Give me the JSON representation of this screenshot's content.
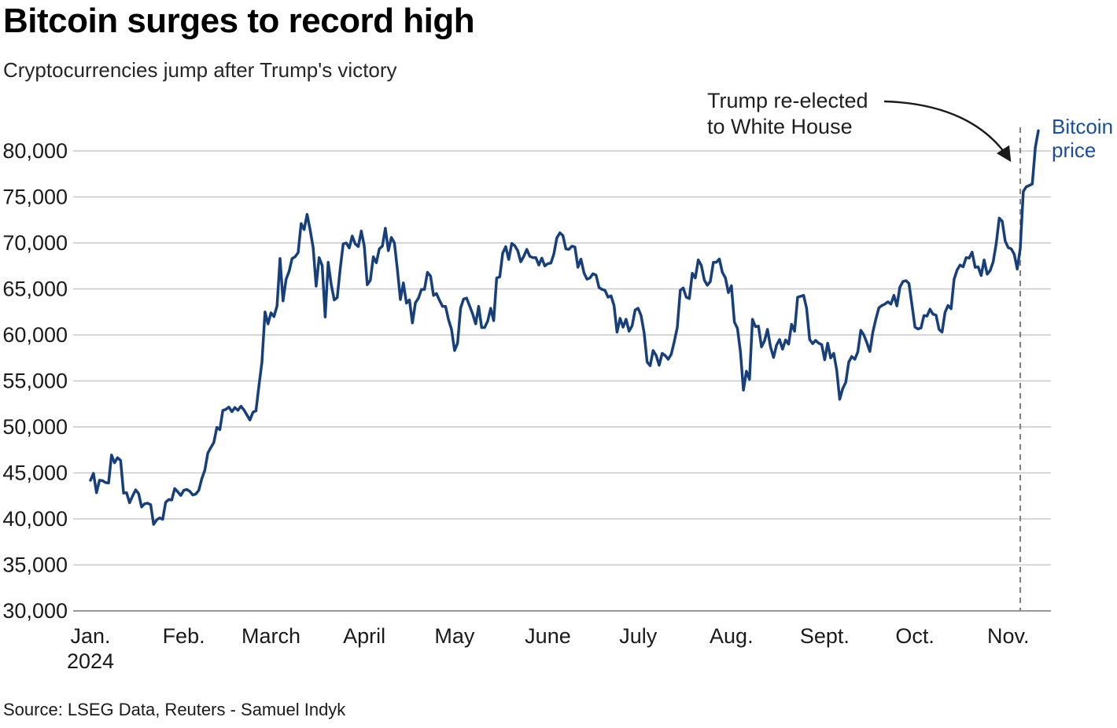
{
  "header": {
    "title": "Bitcoin surges to record high",
    "subtitle": "Cryptocurrencies jump after Trump's victory"
  },
  "footer": {
    "source": "Source: LSEG Data, Reuters - Samuel Indyk"
  },
  "annotation": {
    "line1": "Trump re-elected",
    "line2": "to White House"
  },
  "series_label": {
    "line1": "Bitcoin",
    "line2": "price"
  },
  "colors": {
    "line": "#173f7c",
    "series_label_text": "#1a4d9c",
    "grid": "#c9c9c9",
    "axis": "#999999",
    "event_line": "#7d7d7d",
    "arrow": "#1a1a1a",
    "tick_text": "#1a1a1a"
  },
  "chart_data": {
    "type": "line",
    "title": "Bitcoin surges to record high",
    "subtitle": "Cryptocurrencies jump after Trump's victory",
    "source": "Source: LSEG Data, Reuters - Samuel Indyk",
    "x_start_date": "Jan. 1, 2024",
    "x_end_date": "Nov. 11, 2024",
    "x_frequency": "daily",
    "ylim": [
      30000,
      80000
    ],
    "y_tick_step": 5000,
    "grid": "horizontal",
    "legend_position": "end-of-line-label",
    "y_ticks": [
      {
        "value": 80000,
        "label": "80,000"
      },
      {
        "value": 75000,
        "label": "75,000"
      },
      {
        "value": 70000,
        "label": "70,000"
      },
      {
        "value": 65000,
        "label": "65,000"
      },
      {
        "value": 60000,
        "label": "60,000"
      },
      {
        "value": 55000,
        "label": "55,000"
      },
      {
        "value": 50000,
        "label": "50,000"
      },
      {
        "value": 45000,
        "label": "45,000"
      },
      {
        "value": 40000,
        "label": "40,000"
      },
      {
        "value": 35000,
        "label": "35,000"
      },
      {
        "value": 30000,
        "label": "30,000"
      }
    ],
    "x_ticks": [
      {
        "label": "Jan.",
        "sublabel": "2024",
        "day_index": 0
      },
      {
        "label": "Feb.",
        "day_index": 31
      },
      {
        "label": "March",
        "day_index": 60
      },
      {
        "label": "April",
        "day_index": 91
      },
      {
        "label": "May",
        "day_index": 121
      },
      {
        "label": "June",
        "day_index": 152
      },
      {
        "label": "July",
        "day_index": 182
      },
      {
        "label": "Aug.",
        "day_index": 213
      },
      {
        "label": "Sept.",
        "day_index": 244
      },
      {
        "label": "Oct.",
        "day_index": 274
      },
      {
        "label": "Nov.",
        "day_index": 305
      }
    ],
    "event": {
      "text_line1": "Trump re-elected",
      "text_line2": "to White House",
      "date": "Nov. 5, 2024",
      "day_index": 309
    },
    "series": [
      {
        "name": "Bitcoin price",
        "values": [
          44200,
          44950,
          42850,
          44200,
          44150,
          43950,
          43900,
          46950,
          46100,
          46650,
          46350,
          42800,
          42850,
          41750,
          42500,
          43150,
          42750,
          41300,
          41650,
          41700,
          41550,
          39400,
          39900,
          40100,
          39950,
          41800,
          42100,
          42050,
          43300,
          42950,
          42550,
          43100,
          43200,
          43000,
          42600,
          42700,
          43100,
          44350,
          45300,
          47150,
          47750,
          48300,
          49950,
          49700,
          51800,
          51900,
          52150,
          51650,
          52100,
          51800,
          52250,
          51850,
          51300,
          50750,
          51600,
          51750,
          54500,
          57050,
          62500,
          61200,
          62400,
          62000,
          63150,
          68300,
          63700,
          66050,
          66900,
          68300,
          68500,
          68950,
          72100,
          71450,
          73100,
          71400,
          69500,
          65300,
          68400,
          67550,
          61950,
          67900,
          65500,
          63800,
          64050,
          67200,
          69900,
          70000,
          69450,
          70750,
          69900,
          69600,
          71300,
          69650,
          65450,
          65950,
          68500,
          67850,
          69350,
          69650,
          71600,
          69150,
          70600,
          70000,
          67100,
          63850,
          65650,
          63450,
          63800,
          61300,
          63500,
          64000,
          64950,
          64950,
          66800,
          66400,
          64300,
          64500,
          63750,
          63100,
          63100,
          61650,
          60600,
          58300,
          59100,
          62900,
          63900,
          64000,
          63150,
          62300,
          61200,
          63100,
          60800,
          60800,
          61500,
          62900,
          61550,
          66200,
          66300,
          68900,
          69600,
          68200,
          69950,
          69700,
          69150,
          67950,
          68550,
          69300,
          68550,
          68400,
          68400,
          67600,
          68350,
          67500,
          67750,
          67800,
          68800,
          70550,
          71100,
          70800,
          69350,
          69300,
          69650,
          69550,
          67350,
          68250,
          66750,
          66050,
          66200,
          66650,
          66500,
          65150,
          64950,
          64850,
          64100,
          64250,
          63200,
          60300,
          61800,
          60850,
          61700,
          60400,
          61000,
          62700,
          62900,
          62100,
          60200,
          57050,
          56650,
          58300,
          57750,
          56700,
          58000,
          57750,
          57350,
          57900,
          59250,
          60800,
          64850,
          65100,
          64100,
          63950,
          66700,
          66200,
          68150,
          67550,
          65950,
          65400,
          65800,
          67900,
          67900,
          68250,
          66800,
          66200,
          64600,
          65350,
          61400,
          60700,
          58150,
          54000,
          56050,
          55150,
          61700,
          60900,
          60950,
          58700,
          59350,
          60600,
          58700,
          57550,
          58900,
          59500,
          58450,
          59450,
          59000,
          61150,
          60400,
          64100,
          64200,
          64300,
          62900,
          59500,
          59050,
          59400,
          59100,
          58950,
          57300,
          59100,
          57500,
          58000,
          56150,
          53000,
          54150,
          54850,
          57050,
          57650,
          57350,
          58150,
          60500,
          60000,
          59150,
          58200,
          60300,
          61700,
          62950,
          63200,
          63350,
          63600,
          63350,
          64300,
          63150,
          65200,
          65800,
          65900,
          65600,
          63300,
          60850,
          60650,
          60750,
          62100,
          62050,
          62800,
          62250,
          62150,
          60600,
          60300,
          62450,
          63200,
          62850,
          66050,
          67050,
          67600,
          67400,
          68400,
          68350,
          69000,
          67350,
          67400,
          66450,
          68150,
          66600,
          67000,
          67950,
          69900,
          72700,
          72350,
          70200,
          69500,
          69350,
          68750,
          67150,
          69400,
          75600,
          76100,
          76250,
          76400,
          80400,
          82200
        ]
      }
    ]
  }
}
